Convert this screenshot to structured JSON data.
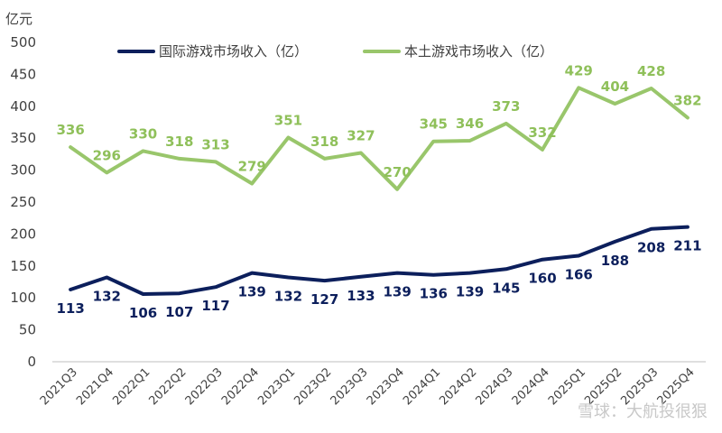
{
  "chart_data": {
    "type": "line",
    "title": "",
    "ylabel": "亿元",
    "xlabel": "",
    "ylim": [
      0,
      500
    ],
    "yticks": [
      0,
      50,
      100,
      150,
      200,
      250,
      300,
      350,
      400,
      450,
      500
    ],
    "grid": false,
    "legend_position": "top",
    "categories": [
      "2021Q3",
      "2021Q4",
      "2022Q1",
      "2022Q2",
      "2022Q3",
      "2022Q4",
      "2023Q1",
      "2023Q2",
      "2023Q3",
      "2023Q4",
      "2024Q1",
      "2024Q2",
      "2024Q3",
      "2024Q4",
      "2025Q1",
      "2025Q2",
      "2025Q3",
      "2025Q4"
    ],
    "series": [
      {
        "name": "国际游戏市场收入（亿）",
        "color": "#0c1f5c",
        "values": [
          113,
          132,
          106,
          107,
          117,
          139,
          132,
          127,
          133,
          139,
          136,
          139,
          145,
          160,
          166,
          188,
          208,
          211
        ]
      },
      {
        "name": "本土游戏市场收入（亿）",
        "color": "#99c66b",
        "values": [
          336,
          296,
          330,
          318,
          313,
          279,
          351,
          318,
          327,
          270,
          345,
          346,
          373,
          332,
          429,
          404,
          428,
          382
        ]
      }
    ]
  },
  "watermark": "雪球：大航投很狠"
}
